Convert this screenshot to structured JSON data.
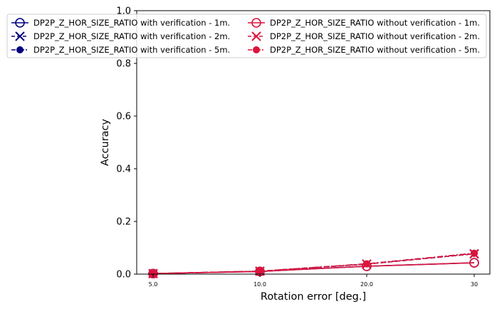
{
  "chart_data": {
    "type": "line",
    "title": "",
    "xlabel": "Rotation error [deg.]",
    "ylabel": "Accuracy",
    "categories": [
      "5.0",
      "10.0",
      "20.0",
      "30"
    ],
    "ylim": [
      0,
      1
    ],
    "yticks": [
      "0.0",
      "0.2",
      "0.4",
      "0.6",
      "0.8",
      "1.0"
    ],
    "grid": false,
    "legend_position": "top",
    "series": [
      {
        "name": "DP2P_Z_HOR_SIZE_RATIO with verification - 1m.",
        "color": "#000080",
        "marker": "circle-open",
        "linestyle": "solid",
        "values": [
          0.002,
          0.01,
          0.03,
          0.043
        ]
      },
      {
        "name": "DP2P_Z_HOR_SIZE_RATIO with verification - 2m.",
        "color": "#000080",
        "marker": "x",
        "linestyle": "dashed",
        "values": [
          0.002,
          0.011,
          0.038,
          0.077
        ]
      },
      {
        "name": "DP2P_Z_HOR_SIZE_RATIO with verification - 5m.",
        "color": "#000080",
        "marker": "circle-filled",
        "linestyle": "dashdot",
        "values": [
          0.002,
          0.011,
          0.039,
          0.079
        ]
      },
      {
        "name": "DP2P_Z_HOR_SIZE_RATIO without verification - 1m.",
        "color": "#DC143C",
        "marker": "circle-open",
        "linestyle": "solid",
        "values": [
          0.002,
          0.01,
          0.03,
          0.043
        ]
      },
      {
        "name": "DP2P_Z_HOR_SIZE_RATIO without verification - 2m.",
        "color": "#DC143C",
        "marker": "x",
        "linestyle": "dashed",
        "values": [
          0.002,
          0.011,
          0.038,
          0.077
        ]
      },
      {
        "name": "DP2P_Z_HOR_SIZE_RATIO without verification - 5m.",
        "color": "#DC143C",
        "marker": "circle-filled",
        "linestyle": "dashdot",
        "values": [
          0.002,
          0.011,
          0.039,
          0.079
        ]
      }
    ]
  }
}
